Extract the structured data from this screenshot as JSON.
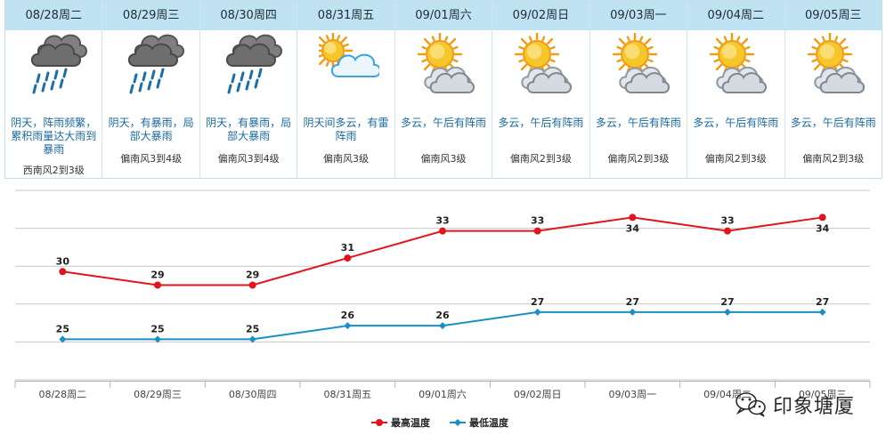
{
  "days": [
    {
      "date": "08/28周二",
      "icon": "heavy-rain-cloud-icon",
      "desc": "阴天，阵雨频繁，累积雨量达大雨到暴雨",
      "wind": "西南风2到3级"
    },
    {
      "date": "08/29周三",
      "icon": "heavy-rain-cloud-icon",
      "desc": "阴天，有暴雨，局部大暴雨",
      "wind": "偏南风3到4级"
    },
    {
      "date": "08/30周四",
      "icon": "heavy-rain-cloud-icon",
      "desc": "阴天，有暴雨，局部大暴雨",
      "wind": "偏南风3到4级"
    },
    {
      "date": "08/31周五",
      "icon": "sun-behind-cloud-icon",
      "desc": "阴天间多云，有雷阵雨",
      "wind": "偏南风3级"
    },
    {
      "date": "09/01周六",
      "icon": "partly-cloudy-icon",
      "desc": "多云，午后有阵雨",
      "wind": "偏南风3级"
    },
    {
      "date": "09/02周日",
      "icon": "partly-cloudy-icon",
      "desc": "多云，午后有阵雨",
      "wind": "偏南风2到3级"
    },
    {
      "date": "09/03周一",
      "icon": "partly-cloudy-icon",
      "desc": "多云，午后有阵雨",
      "wind": "偏南风2到3级"
    },
    {
      "date": "09/04周二",
      "icon": "partly-cloudy-icon",
      "desc": "多云，午后有阵雨",
      "wind": "偏南风2到3级"
    },
    {
      "date": "09/05周三",
      "icon": "partly-cloudy-icon",
      "desc": "多云，午后有阵雨",
      "wind": "偏南风2到3级"
    }
  ],
  "chart_data": {
    "type": "line",
    "categories": [
      "08/28周二",
      "08/29周三",
      "08/30周四",
      "08/31周五",
      "09/01周六",
      "09/02周日",
      "09/03周一",
      "09/04周二",
      "09/05周三"
    ],
    "series": [
      {
        "name": "最高温度",
        "color": "#e0161e",
        "values": [
          30,
          29,
          29,
          31,
          33,
          33,
          34,
          33,
          34
        ]
      },
      {
        "name": "最低温度",
        "color": "#1a8fc6",
        "values": [
          25,
          25,
          25,
          26,
          26,
          27,
          27,
          27,
          27
        ]
      }
    ],
    "grid": true,
    "legend": "bottom-center"
  },
  "watermark": {
    "text": "印象塘厦"
  }
}
